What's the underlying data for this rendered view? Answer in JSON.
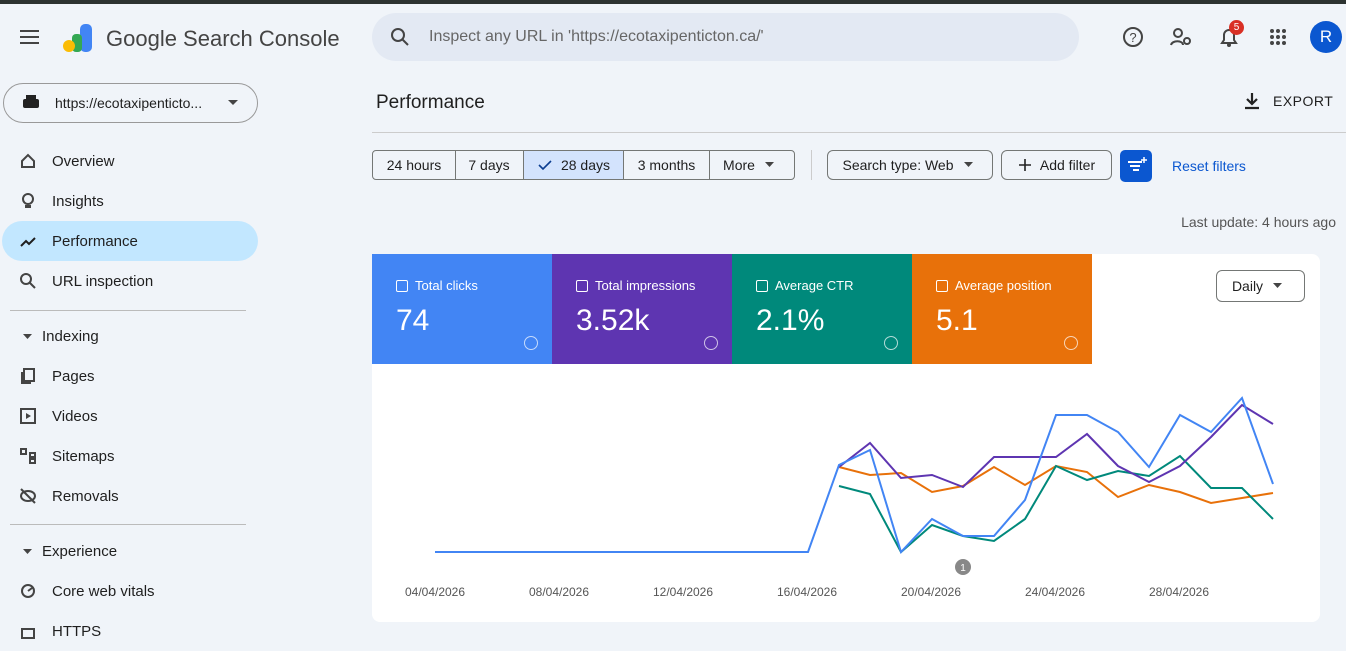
{
  "header": {
    "product": "Google Search Console",
    "search_placeholder": "Inspect any URL in 'https://ecotaxipenticton.ca/'",
    "notification_count": "5",
    "avatar": "R"
  },
  "sidebar": {
    "property": "https://ecotaxipenticto...",
    "items": [
      "Overview",
      "Insights",
      "Performance",
      "URL inspection"
    ],
    "indexing": {
      "title": "Indexing",
      "items": [
        "Pages",
        "Videos",
        "Sitemaps",
        "Removals"
      ]
    },
    "experience": {
      "title": "Experience",
      "items": [
        "Core web vitals",
        "HTTPS"
      ]
    }
  },
  "main": {
    "title": "Performance",
    "export": "EXPORT",
    "ranges": [
      "24 hours",
      "7 days",
      "28 days",
      "3 months",
      "More"
    ],
    "search_type": "Search type: Web",
    "add_filter": "Add filter",
    "reset": "Reset filters",
    "last_update": "Last update: 4 hours ago",
    "metrics": [
      {
        "label": "Total clicks",
        "value": "74",
        "color": "#4285f4"
      },
      {
        "label": "Total impressions",
        "value": "3.52k",
        "color": "#5e35b1"
      },
      {
        "label": "Average CTR",
        "value": "2.1%",
        "color": "#00897b"
      },
      {
        "label": "Average position",
        "value": "5.1",
        "color": "#e8710a"
      }
    ],
    "granularity": "Daily",
    "dates": [
      "04/04/2026",
      "08/04/2026",
      "12/04/2026",
      "16/04/2026",
      "20/04/2026",
      "24/04/2026",
      "28/04/2026"
    ],
    "annotation": "1"
  }
}
